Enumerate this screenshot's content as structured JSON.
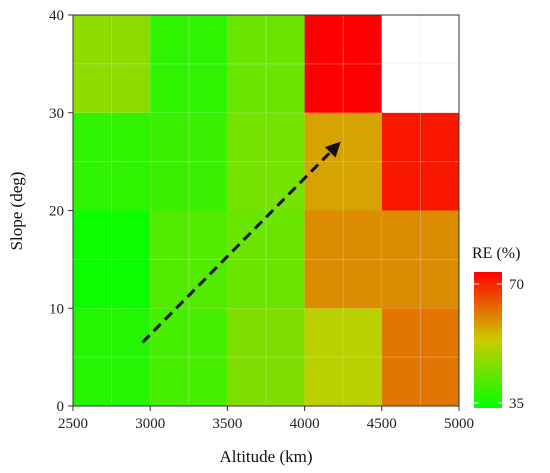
{
  "chart_data": {
    "type": "heatmap",
    "title": "",
    "xlabel": "Altitude (km)",
    "ylabel": "Slope (deg)",
    "x_bins": [
      [
        2500,
        3000
      ],
      [
        3000,
        3500
      ],
      [
        3500,
        4000
      ],
      [
        4000,
        4500
      ],
      [
        4500,
        5000
      ]
    ],
    "y_bins": [
      [
        0,
        10
      ],
      [
        10,
        20
      ],
      [
        20,
        30
      ],
      [
        30,
        40
      ]
    ],
    "xlim": [
      2500,
      5000
    ],
    "ylim": [
      0,
      40
    ],
    "x_ticks": [
      "2500",
      "3000",
      "3500",
      "4000",
      "4500",
      "5000"
    ],
    "y_ticks": [
      "0",
      "10",
      "20",
      "30",
      "40"
    ],
    "values": [
      [
        38,
        41,
        46,
        51,
        60
      ],
      [
        36,
        42,
        44,
        58,
        58
      ],
      [
        39,
        40,
        45,
        56,
        68
      ],
      [
        47,
        39,
        44,
        70,
        null
      ]
    ],
    "colorbar": {
      "title": "RE (%)",
      "min": 35,
      "max": 70,
      "labels": [
        "70",
        "35"
      ],
      "colors": [
        "#00ff00",
        "#cccc00",
        "#ff0000"
      ]
    },
    "annotation": {
      "type": "dashed-arrow",
      "from": [
        2950,
        6.5
      ],
      "to": [
        4200,
        26.5
      ]
    },
    "grid": true,
    "missing_color": "#ffffff"
  }
}
